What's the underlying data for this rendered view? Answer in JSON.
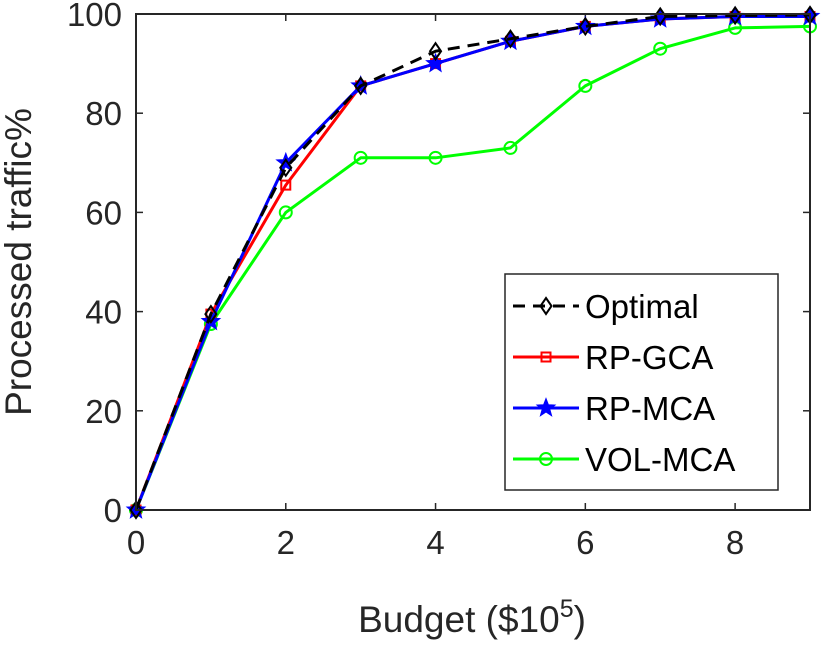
{
  "chart_data": {
    "type": "line",
    "title": "",
    "xlabel": "Budget ($10",
    "xlabel_sup": "5",
    "xlabel_tail": ")",
    "ylabel": "Processed traffic%",
    "xlim": [
      0,
      9
    ],
    "ylim": [
      0,
      100
    ],
    "xticks": [
      0,
      2,
      4,
      6,
      8
    ],
    "yticks": [
      0,
      20,
      40,
      60,
      80,
      100
    ],
    "x": [
      0,
      1,
      2,
      3,
      4,
      5,
      6,
      7,
      8,
      9
    ],
    "grid": false,
    "legend_position": "bottom-right",
    "series": [
      {
        "name": "Optimal",
        "color": "#000000",
        "dash": "dashed",
        "marker": "diamond",
        "values": [
          0,
          39.5,
          69,
          85.5,
          92.5,
          95,
          97.5,
          99.5,
          99.7,
          99.8
        ]
      },
      {
        "name": "RP-GCA",
        "color": "#ff0000",
        "dash": "solid",
        "marker": "square",
        "values": [
          0,
          39.5,
          65.5,
          85.5,
          90,
          94.5,
          97.5,
          99,
          99.5,
          99.5
        ]
      },
      {
        "name": "RP-MCA",
        "color": "#0000ff",
        "dash": "solid",
        "marker": "star",
        "values": [
          0,
          38,
          70,
          85.5,
          90,
          94.5,
          97.5,
          99,
          99.5,
          99.5
        ]
      },
      {
        "name": "VOL-MCA",
        "color": "#00ff00",
        "dash": "solid",
        "marker": "circle",
        "values": [
          0,
          37.5,
          60,
          71,
          71,
          73,
          85.5,
          93,
          97.2,
          97.5
        ]
      }
    ]
  }
}
